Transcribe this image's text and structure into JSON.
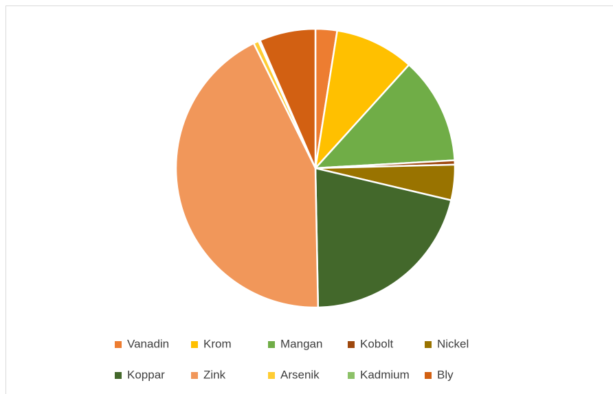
{
  "chart_data": {
    "type": "pie",
    "categories": [
      "Vanadin",
      "Krom",
      "Mangan",
      "Kobolt",
      "Nickel",
      "Koppar",
      "Zink",
      "Arsenik",
      "Kadmium",
      "Bly"
    ],
    "values": [
      2.5,
      9.2,
      12.4,
      0.5,
      4.1,
      21,
      43,
      0.6,
      0.2,
      6.5
    ],
    "colors": [
      "#ED7D31",
      "#FFC000",
      "#70AD47",
      "#9E480E",
      "#997300",
      "#43682B",
      "#F1975A",
      "#FFCD33",
      "#8CC168",
      "#D26012"
    ],
    "legend": "bottom"
  }
}
